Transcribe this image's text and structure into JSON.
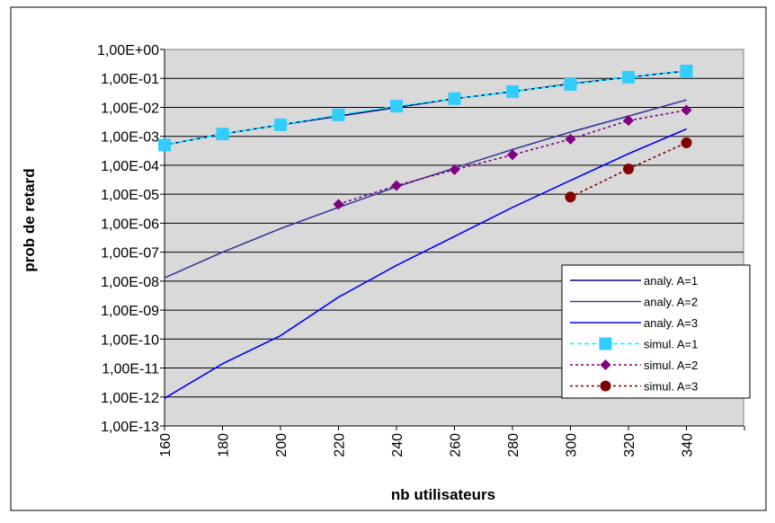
{
  "chart_data": {
    "type": "line",
    "title": "",
    "xlabel": "nb utilisateurs",
    "ylabel": "prob de retard",
    "y_scale": "log",
    "ylim": [
      1e-13,
      1
    ],
    "xlim": [
      160,
      340
    ],
    "x_ticks": [
      160,
      180,
      200,
      220,
      240,
      260,
      280,
      300,
      320,
      340
    ],
    "x_tick_labels": [
      "160",
      "180",
      "200",
      "220",
      "240",
      "260",
      "280",
      "300",
      "320",
      "340"
    ],
    "y_tick_labels": [
      "1,00E+00",
      "1,00E-01",
      "1,00E-02",
      "1,00E-03",
      "1,00E-04",
      "1,00E-05",
      "1,00E-06",
      "1,00E-07",
      "1,00E-08",
      "1,00E-09",
      "1,00E-10",
      "1,00E-11",
      "1,00E-12",
      "1,00E-13"
    ],
    "grid": true,
    "legend_position": "right",
    "plot_background": "#d9d9d9",
    "series": [
      {
        "name": "analy. A=1",
        "style": "solid",
        "color": "#000080",
        "marker": "none",
        "x": [
          160,
          180,
          200,
          220,
          240,
          260,
          280,
          300,
          320,
          340
        ],
        "y": [
          0.0005,
          0.0012,
          0.0025,
          0.005,
          0.01,
          0.02,
          0.035,
          0.065,
          0.11,
          0.18
        ]
      },
      {
        "name": "analy. A=2",
        "style": "solid",
        "color": "#3a3a9a",
        "marker": "none",
        "x": [
          160,
          180,
          200,
          220,
          240,
          260,
          280,
          300,
          320,
          340
        ],
        "y": [
          1.3e-08,
          1e-07,
          6.5e-07,
          3.5e-06,
          1.8e-05,
          8e-05,
          0.00035,
          0.0014,
          0.005,
          0.018
        ]
      },
      {
        "name": "analy. A=3",
        "style": "solid",
        "color": "#0000ff",
        "marker": "none",
        "x": [
          160,
          180,
          200,
          220,
          240,
          260,
          280,
          300,
          320,
          340
        ],
        "y": [
          9e-13,
          1.4e-11,
          1.3e-10,
          2.8e-09,
          3.5e-08,
          3.5e-07,
          3.5e-06,
          3e-05,
          0.00025,
          0.0018
        ]
      },
      {
        "name": "simul. A=1",
        "style": "dashed",
        "color": "#00ffff",
        "marker": "square",
        "marker_color": "#33ccff",
        "x": [
          160,
          180,
          200,
          220,
          240,
          260,
          280,
          300,
          320,
          340
        ],
        "y": [
          0.0005,
          0.0012,
          0.0025,
          0.0055,
          0.011,
          0.02,
          0.035,
          0.062,
          0.11,
          0.18
        ]
      },
      {
        "name": "simul. A=2",
        "style": "dotted",
        "color": "#800080",
        "marker": "diamond",
        "marker_color": "#800080",
        "x": [
          220,
          240,
          260,
          280,
          300,
          320,
          340
        ],
        "y": [
          4.5e-06,
          2e-05,
          7e-05,
          0.00023,
          0.0008,
          0.0035,
          0.008
        ]
      },
      {
        "name": "simul. A=3",
        "style": "dotted",
        "color": "#800000",
        "marker": "circle",
        "marker_color": "#800000",
        "x": [
          300,
          320,
          340
        ],
        "y": [
          8e-06,
          7.5e-05,
          0.0006
        ]
      }
    ]
  }
}
